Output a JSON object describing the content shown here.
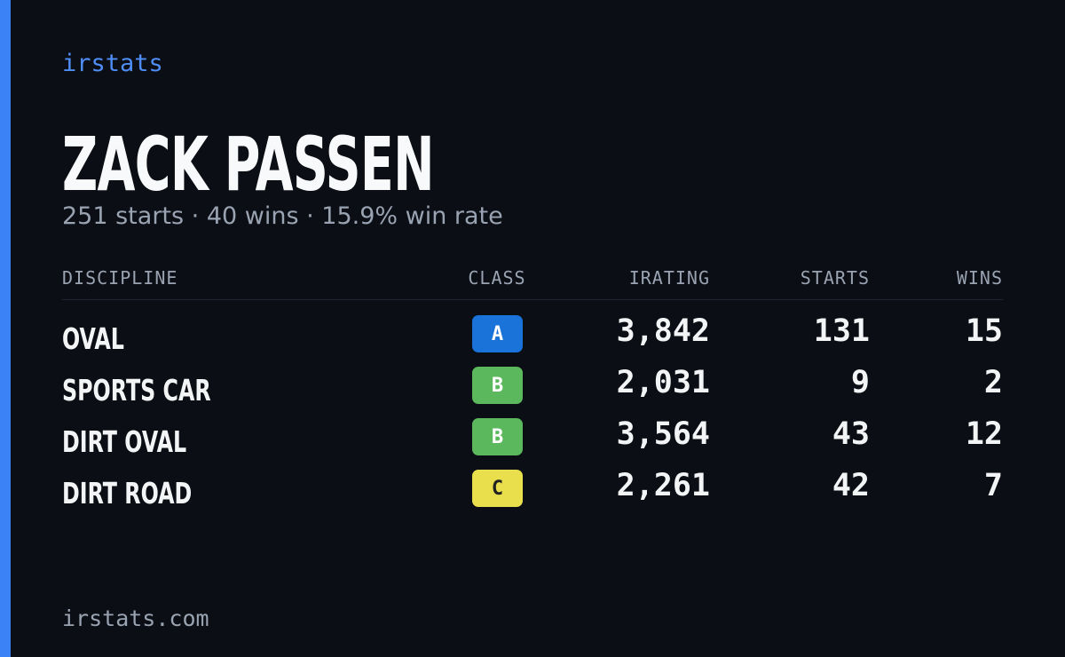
{
  "brand": "irstats",
  "driver": {
    "name": "ZACK PASSEN",
    "summary": "251 starts · 40 wins · 15.9% win rate"
  },
  "table": {
    "headers": [
      "DISCIPLINE",
      "CLASS",
      "IRATING",
      "STARTS",
      "WINS"
    ],
    "rows": [
      {
        "discipline": "OVAL",
        "class": "A",
        "class_color": "#1a73d9",
        "irating": "3,842",
        "starts": "131",
        "wins": "15"
      },
      {
        "discipline": "SPORTS CAR",
        "class": "B",
        "class_color": "#5cb85c",
        "irating": "2,031",
        "starts": "9",
        "wins": "2"
      },
      {
        "discipline": "DIRT OVAL",
        "class": "B",
        "class_color": "#5cb85c",
        "irating": "3,564",
        "starts": "43",
        "wins": "12"
      },
      {
        "discipline": "DIRT ROAD",
        "class": "C",
        "class_color": "#e9df4c",
        "irating": "2,261",
        "starts": "42",
        "wins": "7"
      }
    ]
  },
  "footer": "irstats.com"
}
